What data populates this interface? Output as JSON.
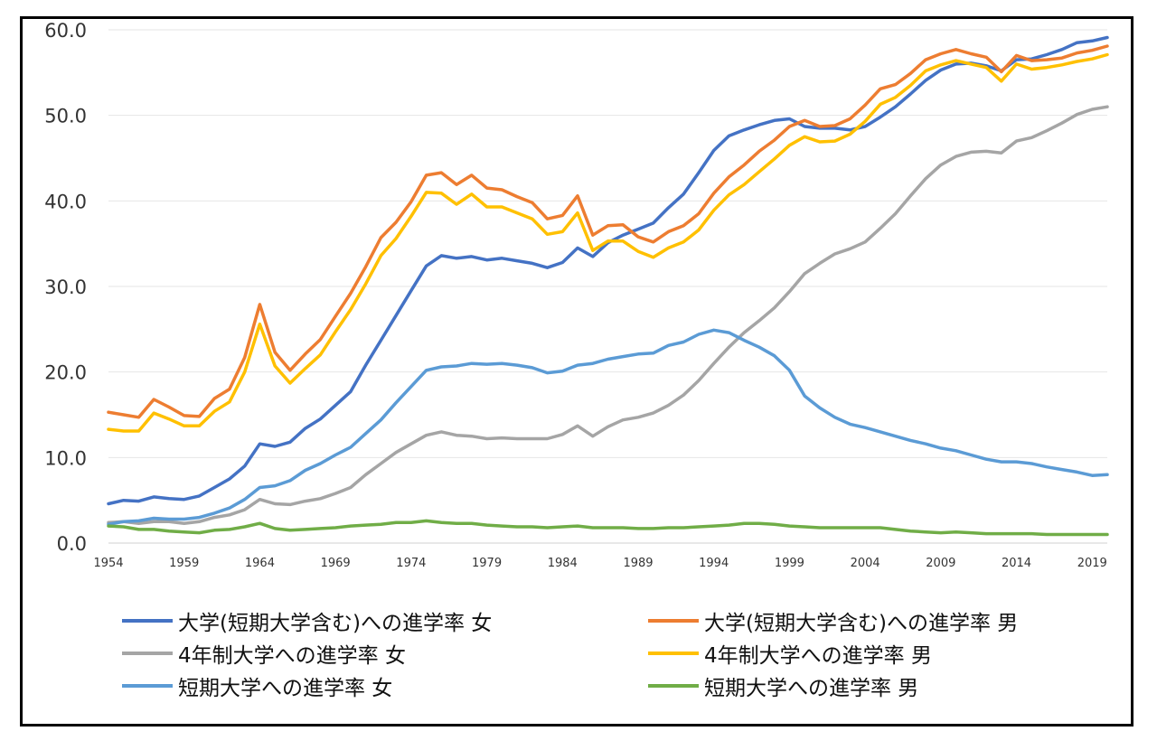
{
  "chart_data": {
    "type": "line",
    "title": "",
    "xlabel": "",
    "ylabel": "",
    "ylim": [
      0,
      60
    ],
    "yticks": [
      "0.0",
      "10.0",
      "20.0",
      "30.0",
      "40.0",
      "50.0",
      "60.0"
    ],
    "xticks": [
      "1954",
      "1959",
      "1964",
      "1969",
      "1974",
      "1979",
      "1984",
      "1989",
      "1994",
      "1999",
      "2004",
      "2009",
      "2014",
      "2019"
    ],
    "x_start": 1954,
    "x_end": 2020,
    "grid": true,
    "legend_position": "bottom",
    "series": [
      {
        "name": "大学(短期大学含む)への進学率 女",
        "color": "#4472C4",
        "values": [
          4.6,
          5.0,
          4.9,
          5.4,
          5.2,
          5.1,
          5.5,
          6.5,
          7.5,
          9.0,
          11.6,
          11.3,
          11.8,
          13.4,
          14.5,
          16.1,
          17.7,
          20.8,
          23.7,
          26.6,
          29.5,
          32.4,
          33.6,
          33.3,
          33.5,
          33.1,
          33.3,
          33.0,
          32.7,
          32.2,
          32.8,
          34.5,
          33.5,
          35.1,
          36.0,
          36.7,
          37.4,
          39.2,
          40.8,
          43.3,
          45.9,
          47.6,
          48.3,
          48.9,
          49.4,
          49.6,
          48.7,
          48.5,
          48.5,
          48.3,
          48.7,
          49.8,
          51.0,
          52.5,
          54.1,
          55.3,
          56.0,
          56.1,
          55.8,
          55.2,
          56.5,
          56.6,
          57.1,
          57.7,
          58.5,
          58.7,
          59.1
        ]
      },
      {
        "name": "大学(短期大学含む)への進学率 男",
        "color": "#ED7D31",
        "values": [
          15.3,
          15.0,
          14.7,
          16.8,
          15.9,
          14.9,
          14.8,
          16.9,
          18.0,
          21.7,
          27.9,
          22.3,
          20.2,
          22.1,
          23.8,
          26.5,
          29.2,
          32.3,
          35.7,
          37.5,
          39.9,
          43.0,
          43.3,
          41.9,
          43.0,
          41.5,
          41.3,
          40.5,
          39.8,
          37.9,
          38.3,
          40.6,
          36.0,
          37.1,
          37.2,
          35.8,
          35.2,
          36.4,
          37.1,
          38.5,
          40.9,
          42.8,
          44.2,
          45.8,
          47.1,
          48.7,
          49.4,
          48.7,
          48.8,
          49.6,
          51.2,
          53.1,
          53.6,
          54.9,
          56.5,
          57.2,
          57.7,
          57.2,
          56.8,
          55.1,
          57.0,
          56.4,
          56.5,
          56.7,
          57.3,
          57.6,
          58.1
        ]
      },
      {
        "name": "4年制大学への進学率 女",
        "color": "#A5A5A5",
        "values": [
          2.4,
          2.5,
          2.3,
          2.5,
          2.5,
          2.3,
          2.5,
          3.0,
          3.3,
          3.9,
          5.1,
          4.6,
          4.5,
          4.9,
          5.2,
          5.8,
          6.5,
          8.0,
          9.3,
          10.6,
          11.6,
          12.6,
          13.0,
          12.6,
          12.5,
          12.2,
          12.3,
          12.2,
          12.2,
          12.2,
          12.7,
          13.7,
          12.5,
          13.6,
          14.4,
          14.7,
          15.2,
          16.1,
          17.3,
          19.0,
          21.0,
          22.9,
          24.6,
          26.0,
          27.5,
          29.4,
          31.5,
          32.7,
          33.8,
          34.4,
          35.2,
          36.8,
          38.5,
          40.6,
          42.6,
          44.2,
          45.2,
          45.7,
          45.8,
          45.6,
          47.0,
          47.4,
          48.2,
          49.1,
          50.1,
          50.7,
          51.0
        ]
      },
      {
        "name": "4年制大学への進学率 男",
        "color": "#FFC000",
        "values": [
          13.3,
          13.1,
          13.1,
          15.2,
          14.5,
          13.7,
          13.7,
          15.4,
          16.5,
          20.0,
          25.6,
          20.7,
          18.7,
          20.4,
          22.0,
          24.7,
          27.3,
          30.3,
          33.6,
          35.6,
          38.2,
          41.0,
          40.9,
          39.6,
          40.8,
          39.3,
          39.3,
          38.6,
          37.9,
          36.1,
          36.4,
          38.6,
          34.2,
          35.3,
          35.3,
          34.1,
          33.4,
          34.5,
          35.2,
          36.6,
          38.9,
          40.7,
          41.9,
          43.4,
          44.9,
          46.5,
          47.5,
          46.9,
          47.0,
          47.8,
          49.3,
          51.3,
          52.1,
          53.5,
          55.2,
          55.9,
          56.4,
          56.0,
          55.6,
          54.0,
          56.0,
          55.4,
          55.6,
          55.9,
          56.3,
          56.6,
          57.1
        ]
      },
      {
        "name": "短期大学への進学率 女",
        "color": "#5B9BD5",
        "values": [
          2.2,
          2.5,
          2.6,
          2.9,
          2.8,
          2.8,
          3.0,
          3.5,
          4.1,
          5.1,
          6.5,
          6.7,
          7.3,
          8.5,
          9.3,
          10.3,
          11.2,
          12.8,
          14.4,
          16.4,
          18.3,
          20.2,
          20.6,
          20.7,
          21.0,
          20.9,
          21.0,
          20.8,
          20.5,
          19.9,
          20.1,
          20.8,
          21.0,
          21.5,
          21.8,
          22.1,
          22.2,
          23.1,
          23.5,
          24.4,
          24.9,
          24.6,
          23.7,
          22.9,
          21.9,
          20.2,
          17.2,
          15.8,
          14.7,
          13.9,
          13.5,
          13.0,
          12.5,
          12.0,
          11.6,
          11.1,
          10.8,
          10.3,
          9.8,
          9.5,
          9.5,
          9.3,
          8.9,
          8.6,
          8.3,
          7.9,
          8.0
        ]
      },
      {
        "name": "短期大学への進学率 男",
        "color": "#70AD47",
        "values": [
          2.0,
          1.9,
          1.6,
          1.6,
          1.4,
          1.3,
          1.2,
          1.5,
          1.6,
          1.9,
          2.3,
          1.7,
          1.5,
          1.6,
          1.7,
          1.8,
          2.0,
          2.1,
          2.2,
          2.4,
          2.4,
          2.6,
          2.4,
          2.3,
          2.3,
          2.1,
          2.0,
          1.9,
          1.9,
          1.8,
          1.9,
          2.0,
          1.8,
          1.8,
          1.8,
          1.7,
          1.7,
          1.8,
          1.8,
          1.9,
          2.0,
          2.1,
          2.3,
          2.3,
          2.2,
          2.0,
          1.9,
          1.8,
          1.8,
          1.8,
          1.8,
          1.8,
          1.6,
          1.4,
          1.3,
          1.2,
          1.3,
          1.2,
          1.1,
          1.1,
          1.1,
          1.1,
          1.0,
          1.0,
          1.0,
          1.0,
          1.0
        ]
      }
    ]
  }
}
